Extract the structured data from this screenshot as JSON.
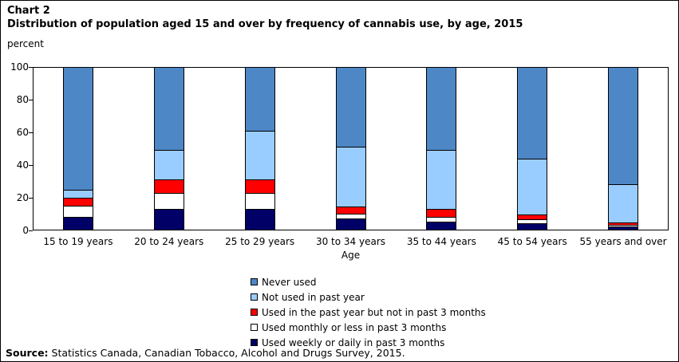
{
  "header": {
    "chart_number": "Chart 2",
    "title": "Distribution of population aged 15 and over by frequency of cannabis use, by age, 2015"
  },
  "axes": {
    "y_unit": "percent",
    "x_title": "Age",
    "y_ticks": [
      0,
      20,
      40,
      60,
      80,
      100
    ]
  },
  "chart_data": {
    "type": "bar",
    "stacked": true,
    "title": "Distribution of population aged 15 and over by frequency of cannabis use, by age, 2015",
    "xlabel": "Age",
    "ylabel": "percent",
    "ylim": [
      0,
      100
    ],
    "grid": false,
    "legend_position": "bottom",
    "categories": [
      "15 to 19 years",
      "20 to 24 years",
      "25 to 29 years",
      "30 to 34 years",
      "35 to 44 years",
      "45 to 54 years",
      "55 years and over"
    ],
    "series": [
      {
        "name": "Used weekly or daily in past 3 months",
        "color": "#000066",
        "values": [
          8,
          13,
          13,
          7,
          5,
          4,
          2
        ]
      },
      {
        "name": "Used monthly or less in past 3 months",
        "color": "#ffffff",
        "values": [
          7,
          9.5,
          9.5,
          3,
          3,
          2.5,
          1
        ]
      },
      {
        "name": "Used in the past year but not in past 3 months",
        "color": "#ff0000",
        "values": [
          4.5,
          8.5,
          8.5,
          4.5,
          5,
          3,
          1.5
        ]
      },
      {
        "name": "Not used in past year",
        "color": "#99ccff",
        "values": [
          5,
          18.5,
          30,
          36.5,
          36.5,
          34.5,
          23.5
        ]
      },
      {
        "name": "Never used",
        "color": "#4e87c6",
        "values": [
          75.5,
          50.5,
          39,
          49,
          50.5,
          56,
          72
        ]
      }
    ],
    "legend_order_top_to_bottom": [
      "Never used",
      "Not used in past year",
      "Used in the past year but not in past 3 months",
      "Used monthly or less in past 3 months",
      "Used weekly or daily in past 3 months"
    ]
  },
  "source": {
    "label": "Source:",
    "text": " Statistics Canada, Canadian Tobacco, Alcohol and Drugs Survey, 2015."
  }
}
